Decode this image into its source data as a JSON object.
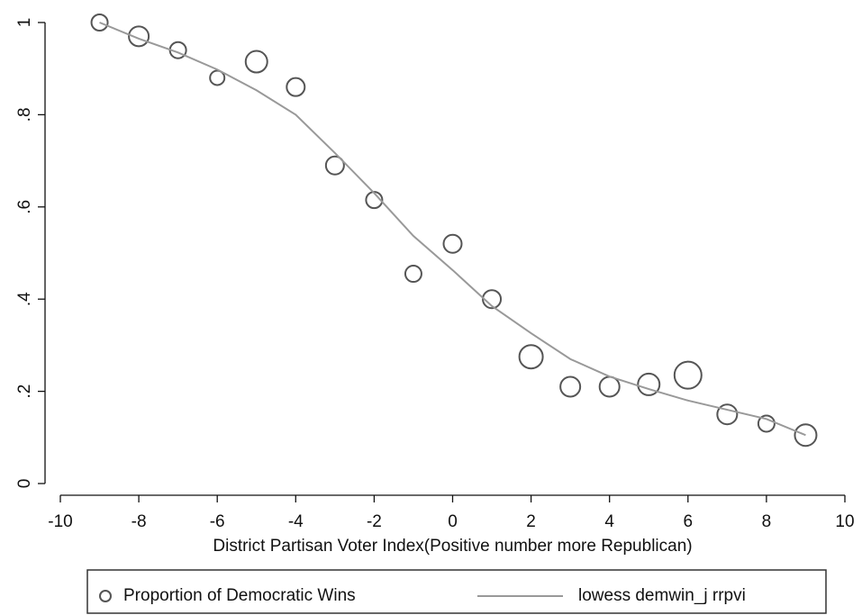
{
  "chart_data": {
    "type": "scatter",
    "xlabel": "District Partisan Voter Index(Positive number more Republican)",
    "xlim": [
      -10,
      10
    ],
    "xticks": [
      -10,
      -8,
      -6,
      -4,
      -2,
      0,
      2,
      4,
      6,
      8,
      10
    ],
    "ylim": [
      0,
      1
    ],
    "yticks": [
      0,
      {
        "value": 0.2,
        "label": ".2"
      },
      {
        "value": 0.4,
        "label": ".4"
      },
      {
        "value": 0.6,
        "label": ".6"
      },
      {
        "value": 0.8,
        "label": ".8"
      },
      1
    ],
    "legend": "bottom",
    "series": [
      {
        "name": "Proportion of Democratic Wins",
        "type": "bubble",
        "color": "#555555",
        "x": [
          -9,
          -8,
          -7,
          -6,
          -5,
          -4,
          -3,
          -2,
          -1,
          0,
          1,
          2,
          3,
          4,
          5,
          6,
          7,
          8,
          9
        ],
        "values": [
          1.0,
          0.97,
          0.94,
          0.88,
          0.915,
          0.86,
          0.69,
          0.615,
          0.455,
          0.52,
          0.4,
          0.275,
          0.21,
          0.21,
          0.215,
          0.235,
          0.15,
          0.13,
          0.105
        ],
        "sizes": [
          9,
          11,
          9,
          8,
          12,
          10,
          10,
          9,
          9,
          10,
          10,
          13,
          11,
          11,
          12,
          15,
          11,
          9,
          12
        ]
      },
      {
        "name": "lowess demwin_j rrpvi",
        "type": "line",
        "color": "#999999",
        "x": [
          -9,
          -8,
          -7,
          -6,
          -5,
          -4,
          -3,
          -2,
          -1,
          0,
          1,
          2,
          3,
          4,
          5,
          6,
          7,
          8,
          9
        ],
        "values": [
          1.0,
          0.965,
          0.935,
          0.898,
          0.853,
          0.8,
          0.717,
          0.63,
          0.537,
          0.463,
          0.385,
          0.326,
          0.27,
          0.232,
          0.205,
          0.18,
          0.16,
          0.14,
          0.105
        ]
      }
    ]
  }
}
